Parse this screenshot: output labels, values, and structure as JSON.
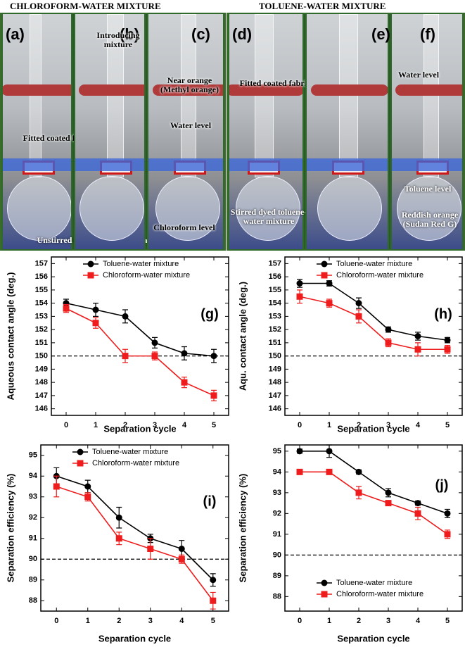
{
  "photos": {
    "groups": [
      {
        "title": "CHLOROFORM-WATER MIXTURE",
        "panels": [
          {
            "letter": "(a)",
            "notes": [
              "Fitted coated fabric",
              "Unstirred dyed chloroform-water mixture"
            ]
          },
          {
            "letter": "(b)",
            "notes": [
              "Introducing mixture"
            ]
          },
          {
            "letter": "(c)",
            "notes": [
              "Near orange (Methyl orange)",
              "Water level",
              "Chloroform level"
            ]
          }
        ]
      },
      {
        "title": "TOLUENE-WATER MIXTURE",
        "panels": [
          {
            "letter": "(d)",
            "notes": [
              "Fitted coated fabric",
              "Stirred dyed toluene-water mixture"
            ]
          },
          {
            "letter": "(e)",
            "notes": []
          },
          {
            "letter": "(f)",
            "notes": [
              "Water level",
              "Toluene level",
              "Reddish orange (Sudan Red G)"
            ]
          }
        ]
      }
    ]
  },
  "chart_data": [
    {
      "type": "line",
      "annotation": "(g)",
      "x_label": "Separation cycle",
      "y_label": "Aqueous contact angle (deg.)",
      "x": [
        0,
        1,
        2,
        3,
        4,
        5
      ],
      "xlim": [
        -0.5,
        5.5
      ],
      "xticks": [
        0,
        1,
        2,
        3,
        4,
        5
      ],
      "ylim": [
        145.5,
        157.5
      ],
      "yticks": [
        146,
        147,
        148,
        149,
        150,
        151,
        152,
        153,
        154,
        155,
        156,
        157
      ],
      "reference_line": 150,
      "legend": "upper-left",
      "series": [
        {
          "name": "Toluene-water mixture",
          "color": "#000000",
          "marker": "circle",
          "values": [
            154,
            153.5,
            153,
            151,
            150.2,
            150
          ],
          "errors": [
            0.3,
            0.5,
            0.5,
            0.4,
            0.5,
            0.5
          ]
        },
        {
          "name": "Chloroform-water mixture",
          "color": "#ee1c1c",
          "marker": "square",
          "values": [
            153.6,
            152.5,
            150,
            150,
            148,
            147
          ],
          "errors": [
            0.3,
            0.4,
            0.5,
            0.3,
            0.4,
            0.4
          ]
        }
      ]
    },
    {
      "type": "line",
      "annotation": "(h)",
      "x_label": "Separation cycle",
      "y_label": "Aqu. contact angle (deg.)",
      "x": [
        0,
        1,
        2,
        3,
        4,
        5
      ],
      "xlim": [
        -0.5,
        5.5
      ],
      "xticks": [
        0,
        1,
        2,
        3,
        4,
        5
      ],
      "ylim": [
        145.5,
        157.5
      ],
      "yticks": [
        146,
        147,
        148,
        149,
        150,
        151,
        152,
        153,
        154,
        155,
        156,
        157
      ],
      "reference_line": 150,
      "legend": "upper-left",
      "series": [
        {
          "name": "Toluene-water mixture",
          "color": "#000000",
          "marker": "circle",
          "values": [
            155.5,
            155.5,
            154,
            152,
            151.5,
            151.2
          ],
          "errors": [
            0.3,
            0.2,
            0.4,
            0.2,
            0.3,
            0.2
          ]
        },
        {
          "name": "Chloroform-water mixture",
          "color": "#ee1c1c",
          "marker": "square",
          "values": [
            154.5,
            154,
            153,
            151,
            150.5,
            150.5
          ],
          "errors": [
            0.5,
            0.3,
            0.5,
            0.3,
            0.5,
            0.3
          ]
        }
      ]
    },
    {
      "type": "line",
      "annotation": "(i)",
      "x_label": "Separation cycle",
      "y_label": "Separation efficiency (%)",
      "x": [
        0,
        1,
        2,
        3,
        4,
        5
      ],
      "xlim": [
        -0.5,
        5.5
      ],
      "xticks": [
        0,
        1,
        2,
        3,
        4,
        5
      ],
      "ylim": [
        87.5,
        95.5
      ],
      "yticks": [
        88,
        89,
        90,
        91,
        92,
        93,
        94,
        95
      ],
      "reference_line": 90,
      "legend": "upper-left",
      "series": [
        {
          "name": "Toluene-water mixture",
          "color": "#000000",
          "marker": "circle",
          "values": [
            94,
            93.5,
            92,
            91,
            90.5,
            89
          ],
          "errors": [
            0.4,
            0.3,
            0.5,
            0.2,
            0.4,
            0.3
          ]
        },
        {
          "name": "Chloroform-water mixture",
          "color": "#ee1c1c",
          "marker": "square",
          "values": [
            93.5,
            93,
            91,
            90.5,
            90,
            88
          ],
          "errors": [
            0.5,
            0.2,
            0.3,
            0.5,
            0.2,
            0.4
          ]
        }
      ]
    },
    {
      "type": "line",
      "annotation": "(j)",
      "x_label": "Separation cycle",
      "y_label": "Separation efficiency (%)",
      "x": [
        0,
        1,
        2,
        3,
        4,
        5
      ],
      "xlim": [
        -0.5,
        5.5
      ],
      "xticks": [
        0,
        1,
        2,
        3,
        4,
        5
      ],
      "ylim": [
        87.3,
        95.3
      ],
      "yticks": [
        88,
        89,
        90,
        91,
        92,
        93,
        94,
        95
      ],
      "reference_line": 90,
      "legend": "lower-left",
      "series": [
        {
          "name": "Toluene-water mixture",
          "color": "#000000",
          "marker": "circle",
          "values": [
            95,
            95,
            94,
            93,
            92.5,
            92
          ],
          "errors": [
            0.1,
            0.3,
            0.1,
            0.2,
            0.1,
            0.2
          ]
        },
        {
          "name": "Chloroform-water mixture",
          "color": "#ee1c1c",
          "marker": "square",
          "values": [
            94,
            94,
            93,
            92.5,
            92,
            91
          ],
          "errors": [
            0.1,
            0.1,
            0.3,
            0.1,
            0.3,
            0.2
          ]
        }
      ]
    }
  ]
}
